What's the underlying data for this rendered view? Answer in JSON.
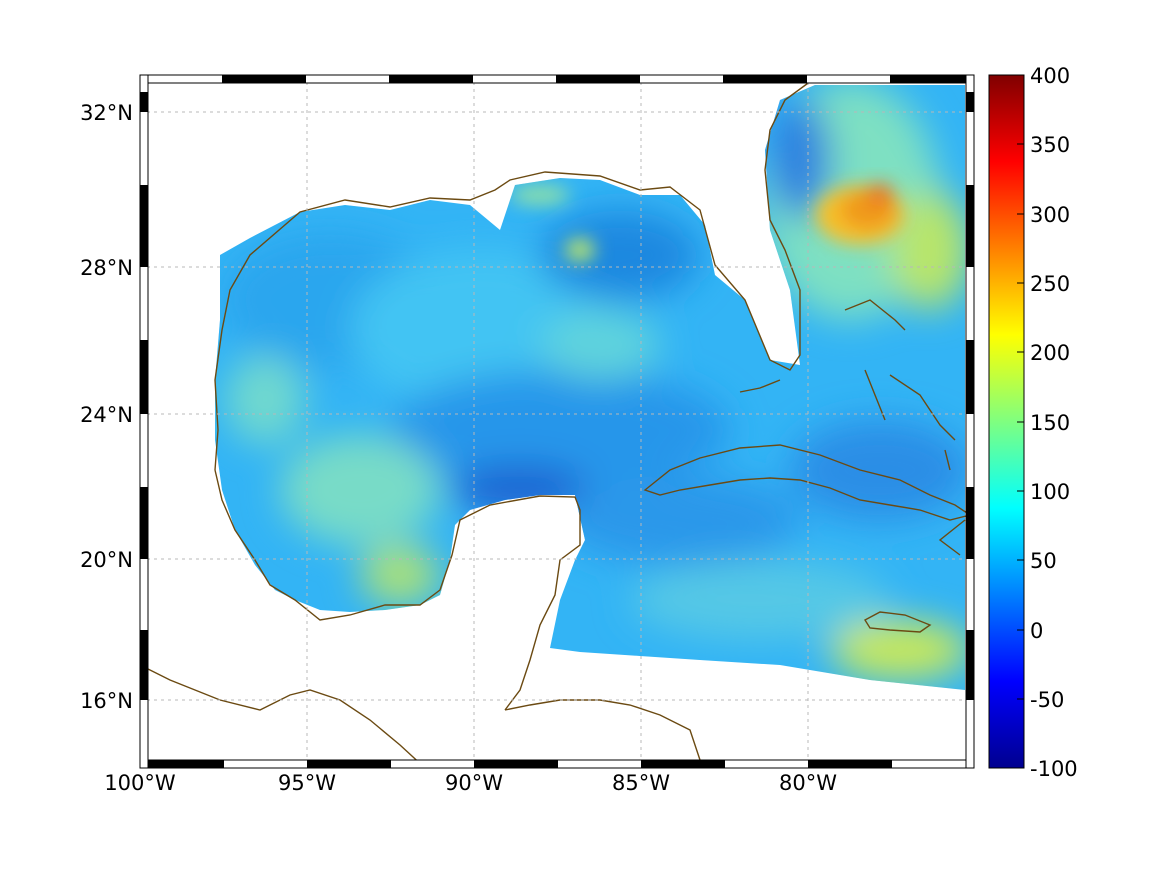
{
  "map": {
    "lon_ticks": [
      "100°W",
      "95°W",
      "90°W",
      "85°W",
      "80°W"
    ],
    "lat_ticks": [
      "32°N",
      "28°N",
      "24°N",
      "20°N",
      "16°N"
    ],
    "extent": {
      "lon_min": -100,
      "lon_max": -75,
      "lat_min": 14.3,
      "lat_max": 33
    },
    "grid": true,
    "frame": "black-and-white checkered border",
    "coastline_color": "#6b4a12"
  },
  "colorbar": {
    "ticks": [
      "400",
      "350",
      "300",
      "250",
      "200",
      "150",
      "100",
      "50",
      "0",
      "-50",
      "-100"
    ],
    "range": [
      -100,
      400
    ],
    "colormap": "jet"
  },
  "field": {
    "description_level": "mostly 40–120 over Gulf, peak ~300 north of Bahamas",
    "hotspot_value": 300
  }
}
